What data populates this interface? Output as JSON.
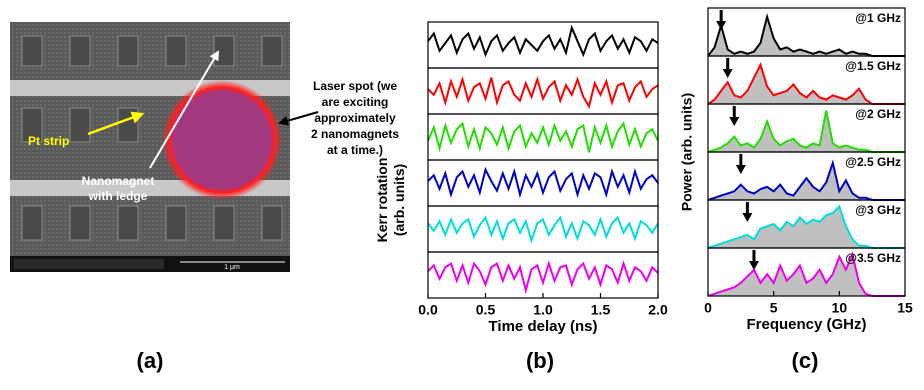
{
  "panel_labels": [
    "(a)",
    "(b)",
    "(c)"
  ],
  "image_a": {
    "pt_strip": "Pt strip",
    "nanomagnet": [
      "Nanomagnet",
      "with ledge"
    ],
    "laser_spot": [
      "Laser spot (we",
      "are exciting",
      "approximately",
      "2 nanomagnets",
      "at a time.)"
    ],
    "scale_bar": "1 μm"
  },
  "chart_data": [
    {
      "type": "line",
      "x_label": "Time delay (ns)",
      "y_label": [
        "Kerr rotation",
        "(arb. units)"
      ],
      "xlim": [
        0,
        2
      ],
      "xticks": [
        {
          "value": 0,
          "label": "0.0"
        },
        0.5,
        {
          "value": 1,
          "label": "1.0"
        },
        1.5,
        {
          "value": 2,
          "label": "2.0"
        }
      ],
      "ylim": [
        -1.2,
        1.2
      ],
      "x": [
        0,
        0.05,
        0.1,
        0.15,
        0.2,
        0.25,
        0.3,
        0.35,
        0.4,
        0.45,
        0.5,
        0.55,
        0.6,
        0.65,
        0.7,
        0.75,
        0.8,
        0.85,
        0.9,
        0.95,
        1,
        1.05,
        1.1,
        1.15,
        1.2,
        1.25,
        1.3,
        1.35,
        1.4,
        1.45,
        1.5,
        1.55,
        1.6,
        1.65,
        1.7,
        1.75,
        1.8,
        1.85,
        1.9,
        1.95,
        2
      ],
      "series": [
        {
          "color": "#000000",
          "values": [
            0.2,
            0.6,
            -0.3,
            0.1,
            0.5,
            -0.4,
            0.3,
            0.6,
            -0.2,
            0.4,
            -0.5,
            0.2,
            0.5,
            -0.3,
            0.1,
            0.4,
            -0.4,
            0.3,
            0.0,
            -0.3,
            0.2,
            0.5,
            -0.2,
            0.3,
            -0.4,
            0.9,
            0.2,
            -0.5,
            0.3,
            0.6,
            -0.3,
            0.2,
            0.5,
            -0.2,
            0.3,
            -0.4,
            0.4,
            0.2,
            -0.3,
            0.3,
            0.1
          ]
        },
        {
          "color": "#ff0000",
          "values": [
            0.1,
            -0.2,
            0.4,
            -0.6,
            0.5,
            -0.3,
            0.6,
            -0.5,
            0.2,
            0.4,
            -0.4,
            0.7,
            -0.6,
            0.3,
            0.5,
            -0.2,
            -0.5,
            0.4,
            -0.3,
            0.6,
            -0.4,
            0.2,
            0.5,
            -0.5,
            0.3,
            -0.2,
            0.6,
            -0.3,
            -0.8,
            0.4,
            -0.2,
            0.5,
            -0.6,
            0.3,
            0.4,
            -0.5,
            0.2,
            0.5,
            -0.3,
            0.1,
            0.3
          ]
        },
        {
          "color": "#22dd00",
          "values": [
            -0.2,
            0.5,
            -0.6,
            0.6,
            -0.3,
            0.4,
            0.7,
            -0.5,
            0.4,
            -0.6,
            0.5,
            0.2,
            -0.4,
            0.5,
            -0.6,
            0.3,
            0.6,
            -0.5,
            0.2,
            -0.3,
            0.5,
            -0.4,
            0.6,
            -0.2,
            0.3,
            -0.5,
            0.4,
            0.6,
            -0.8,
            0.5,
            -0.3,
            0.6,
            -0.5,
            0.3,
            0.7,
            -0.4,
            0.4,
            -0.5,
            0.2,
            0.4,
            -0.2
          ]
        },
        {
          "color": "#0000cc",
          "values": [
            0.1,
            0.4,
            -0.3,
            0.5,
            -0.6,
            0.3,
            0.6,
            -0.2,
            0.4,
            -0.5,
            0.7,
            0.1,
            -0.4,
            0.5,
            -0.3,
            0.6,
            -0.6,
            0.4,
            -0.2,
            0.5,
            -0.5,
            0.3,
            0.6,
            -0.4,
            0.2,
            0.5,
            -0.6,
            0.4,
            -0.3,
            0.5,
            0.3,
            -0.6,
            0.6,
            -0.2,
            0.4,
            -0.5,
            0.6,
            -0.3,
            0.2,
            0.4,
            0.0
          ]
        },
        {
          "color": "#00dddd",
          "values": [
            0.3,
            -0.1,
            0.4,
            -0.3,
            0.5,
            -0.2,
            0.3,
            0.5,
            -0.4,
            0.2,
            0.6,
            -0.3,
            0.4,
            -0.5,
            0.3,
            0.5,
            -0.2,
            0.4,
            -0.6,
            0.3,
            0.5,
            -0.3,
            0.2,
            0.6,
            -0.4,
            0.3,
            -0.5,
            0.4,
            0.2,
            -0.3,
            0.5,
            -0.4,
            0.3,
            0.6,
            -0.2,
            0.3,
            -0.5,
            0.4,
            0.2,
            -0.2,
            0.3
          ]
        },
        {
          "color": "#ee00ee",
          "values": [
            0.2,
            0.5,
            -0.2,
            0.4,
            0.6,
            -0.3,
            0.5,
            -0.4,
            0.6,
            0.2,
            -0.5,
            0.4,
            0.6,
            -0.3,
            0.5,
            -0.2,
            0.4,
            -0.8,
            0.3,
            0.5,
            -0.4,
            0.6,
            -0.3,
            0.4,
            0.5,
            -0.5,
            0.3,
            0.6,
            -0.2,
            0.4,
            -0.5,
            0.5,
            0.3,
            -0.4,
            0.6,
            -0.3,
            0.4,
            0.2,
            -0.3,
            0.4,
            0.1
          ]
        }
      ]
    },
    {
      "type": "area",
      "x_label": "Frequency (GHz)",
      "y_label": [
        "Power (arb. units)"
      ],
      "xlim": [
        0,
        15
      ],
      "xticks": [
        0,
        5,
        10,
        15
      ],
      "ylim": [
        0,
        1.1
      ],
      "fill": "#c0c0c0",
      "x": [
        0,
        0.5,
        1,
        1.5,
        2,
        2.5,
        3,
        3.5,
        4,
        4.5,
        5,
        5.5,
        6,
        6.5,
        7,
        7.5,
        8,
        8.5,
        9,
        9.5,
        10,
        10.5,
        11,
        11.5,
        12,
        12.5,
        13,
        13.5,
        14,
        14.5,
        15
      ],
      "series": [
        {
          "name": "@1 GHz",
          "color": "#000000",
          "arrow_x": 1,
          "values": [
            0,
            0.2,
            0.7,
            0.15,
            0.05,
            0.1,
            0.05,
            0.1,
            0.3,
            0.9,
            0.4,
            0.15,
            0.2,
            0.1,
            0.15,
            0.1,
            0.05,
            0.1,
            0.05,
            0.1,
            0.15,
            0.05,
            0.1,
            0.05,
            0.05,
            0,
            0,
            0,
            0,
            0,
            0
          ]
        },
        {
          "name": "@1.5 GHz",
          "color": "#ff0000",
          "arrow_x": 1.5,
          "values": [
            0,
            0.1,
            0.3,
            0.5,
            0.2,
            0.15,
            0.3,
            0.6,
            0.9,
            0.4,
            0.2,
            0.25,
            0.3,
            0.45,
            0.25,
            0.15,
            0.3,
            0.15,
            0.1,
            0.2,
            0.15,
            0.1,
            0.2,
            0.35,
            0.1,
            0,
            0,
            0,
            0,
            0,
            0
          ]
        },
        {
          "name": "@2 GHz",
          "color": "#22dd00",
          "arrow_x": 2,
          "values": [
            0,
            0.05,
            0.1,
            0.2,
            0.35,
            0.15,
            0.2,
            0.1,
            0.3,
            0.7,
            0.3,
            0.15,
            0.25,
            0.3,
            0.15,
            0.1,
            0.2,
            0.15,
            0.95,
            0.2,
            0.1,
            0.15,
            0.1,
            0.05,
            0.05,
            0,
            0,
            0,
            0,
            0,
            0
          ]
        },
        {
          "name": "@2.5 GHz",
          "color": "#0000cc",
          "arrow_x": 2.5,
          "values": [
            0,
            0.05,
            0.1,
            0.15,
            0.2,
            0.35,
            0.2,
            0.15,
            0.25,
            0.3,
            0.2,
            0.35,
            0.15,
            0.1,
            0.3,
            0.5,
            0.3,
            0.2,
            0.4,
            0.85,
            0.2,
            0.45,
            0.15,
            0.05,
            0.05,
            0,
            0,
            0,
            0,
            0,
            0
          ]
        },
        {
          "name": "@3 GHz",
          "color": "#00dddd",
          "arrow_x": 3,
          "values": [
            0,
            0.05,
            0.1,
            0.15,
            0.2,
            0.25,
            0.3,
            0.2,
            0.45,
            0.5,
            0.55,
            0.4,
            0.6,
            0.5,
            0.7,
            0.55,
            0.65,
            0.6,
            0.75,
            0.8,
            0.95,
            0.5,
            0.2,
            0.05,
            0.05,
            0,
            0,
            0,
            0,
            0,
            0
          ]
        },
        {
          "name": "@3.5 GHz",
          "color": "#ee00ee",
          "arrow_x": 3.5,
          "values": [
            0,
            0.05,
            0.1,
            0.15,
            0.2,
            0.3,
            0.45,
            0.6,
            0.3,
            0.5,
            0.3,
            0.7,
            0.35,
            0.5,
            0.7,
            0.3,
            0.4,
            0.6,
            0.3,
            0.5,
            0.9,
            0.6,
            0.95,
            0.3,
            0.05,
            0,
            0,
            0,
            0,
            0,
            0
          ]
        }
      ]
    }
  ]
}
